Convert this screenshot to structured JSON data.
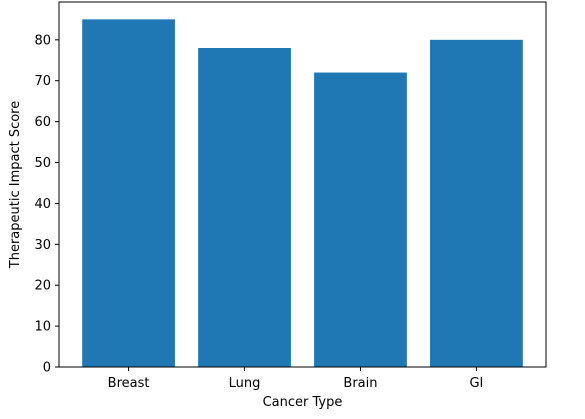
{
  "chart_data": {
    "type": "bar",
    "categories": [
      "Breast",
      "Lung",
      "Brain",
      "GI"
    ],
    "values": [
      85,
      78,
      72,
      80
    ],
    "xlabel": "Cancer Type",
    "ylabel": "Therapeutic Impact Score",
    "ylim": [
      0,
      89.25
    ],
    "yticks": [
      0,
      10,
      20,
      30,
      40,
      50,
      60,
      70,
      80
    ],
    "grid": false,
    "bar_color": "#1f77b4"
  }
}
